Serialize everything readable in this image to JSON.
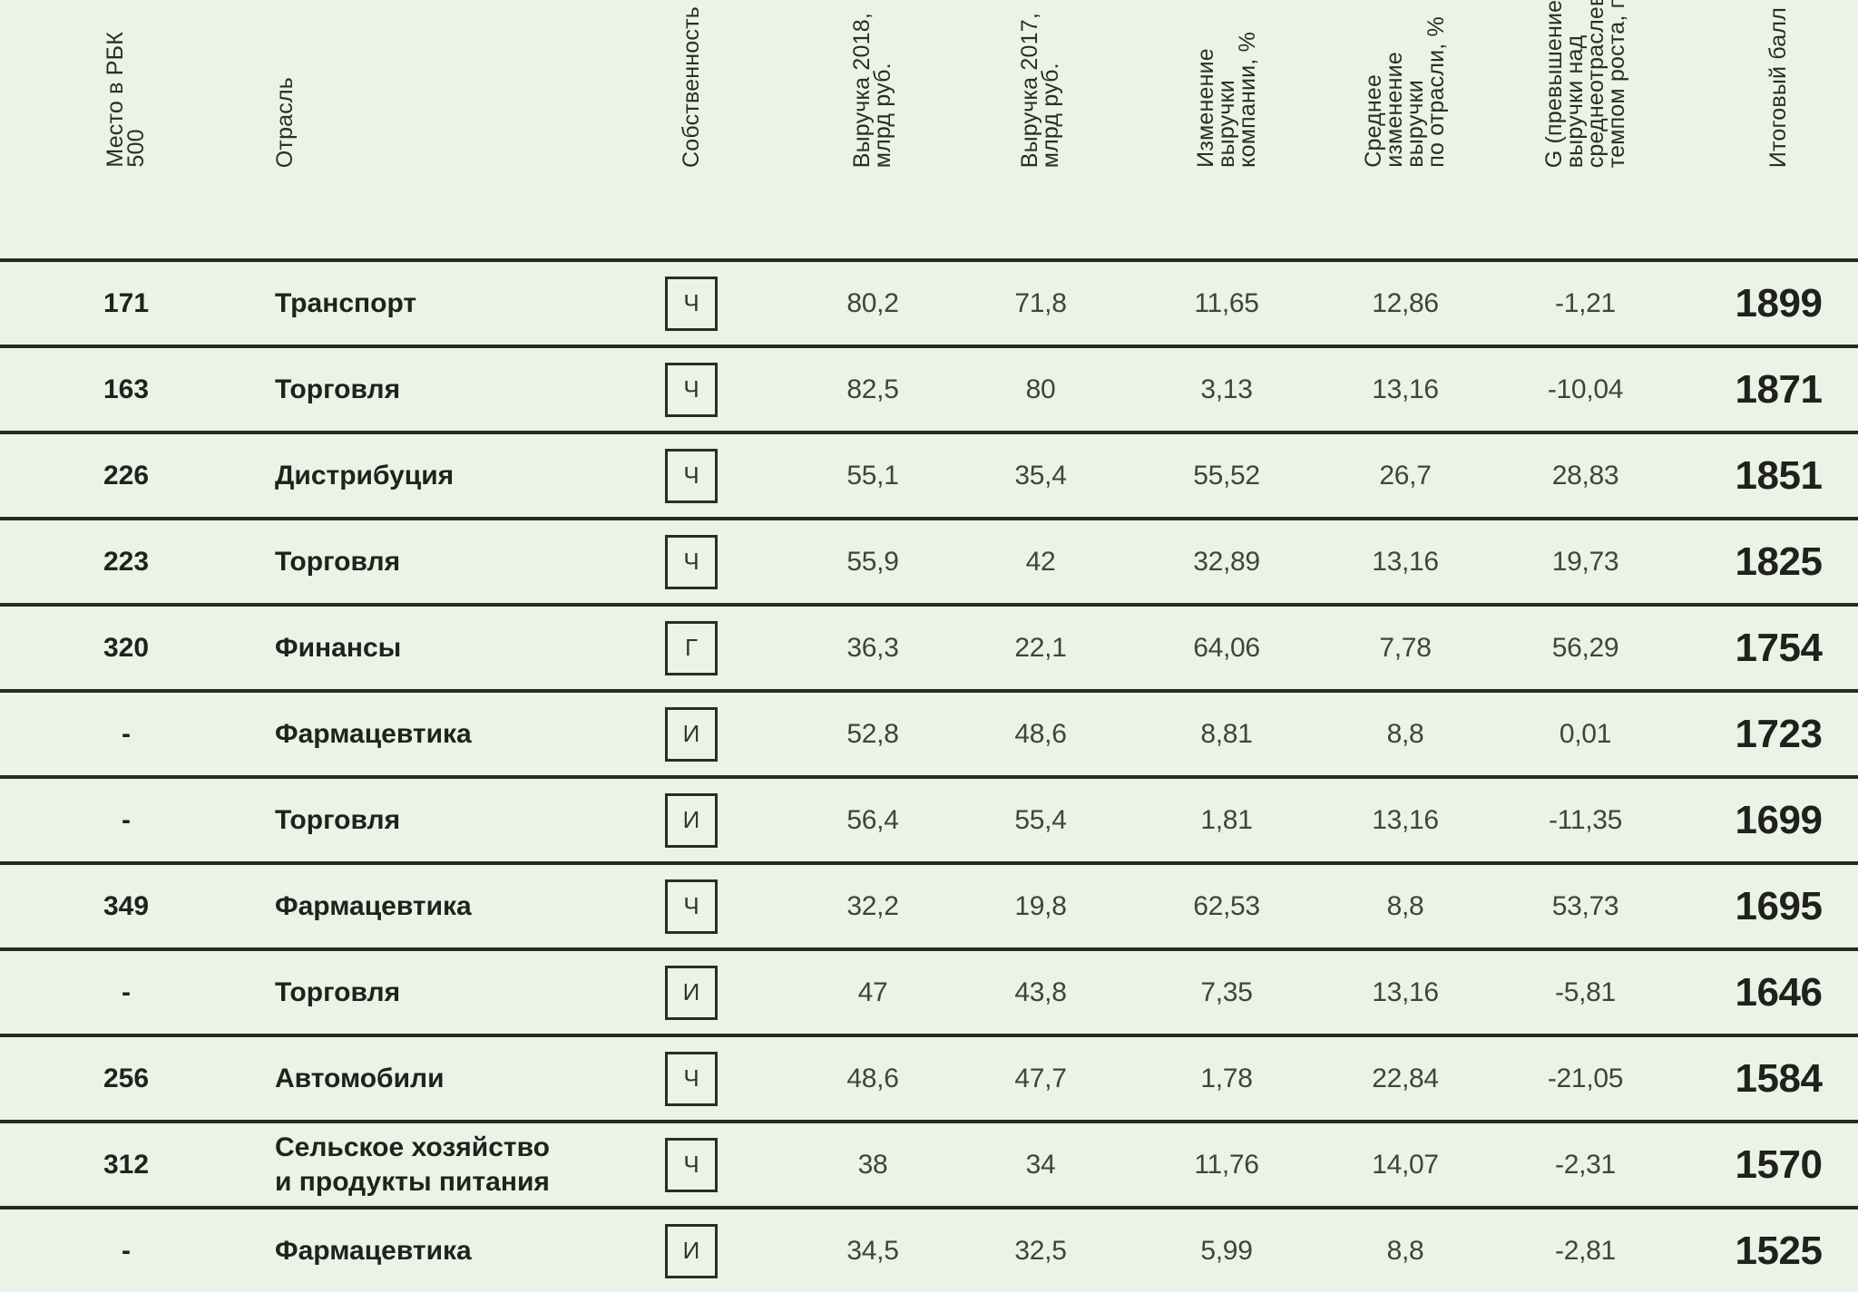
{
  "table": {
    "columns": [
      {
        "id": "rank",
        "label": "Место в РБК\n500"
      },
      {
        "id": "industry",
        "label": "Отрасль"
      },
      {
        "id": "ownership",
        "label": "Собственность"
      },
      {
        "id": "rev2018",
        "label": "Выручка 2018,\nмлрд руб."
      },
      {
        "id": "rev2017",
        "label": "Выручка 2017,\nмлрд руб."
      },
      {
        "id": "change",
        "label": "Изменение\nвыручки\nкомпании, %"
      },
      {
        "id": "avg_change",
        "label": "Среднее\nизменение\nвыручки\nпо отрасли, %"
      },
      {
        "id": "g",
        "label": "G (превышение\nвыручки над\nсреднеотраслевым\nтемпом роста, п.п.)"
      },
      {
        "id": "score",
        "label": "Итоговый балл"
      }
    ],
    "ownership_codes": [
      "Ч",
      "Г",
      "И"
    ],
    "rows": [
      {
        "rank": "171",
        "industry": "Транспорт",
        "ownership": "Ч",
        "rev2018": "80,2",
        "rev2017": "71,8",
        "change": "11,65",
        "avg_change": "12,86",
        "g": "-1,21",
        "score": "1899"
      },
      {
        "rank": "163",
        "industry": "Торговля",
        "ownership": "Ч",
        "rev2018": "82,5",
        "rev2017": "80",
        "change": "3,13",
        "avg_change": "13,16",
        "g": "-10,04",
        "score": "1871"
      },
      {
        "rank": "226",
        "industry": "Дистрибуция",
        "ownership": "Ч",
        "rev2018": "55,1",
        "rev2017": "35,4",
        "change": "55,52",
        "avg_change": "26,7",
        "g": "28,83",
        "score": "1851"
      },
      {
        "rank": "223",
        "industry": "Торговля",
        "ownership": "Ч",
        "rev2018": "55,9",
        "rev2017": "42",
        "change": "32,89",
        "avg_change": "13,16",
        "g": "19,73",
        "score": "1825"
      },
      {
        "rank": "320",
        "industry": "Финансы",
        "ownership": "Г",
        "rev2018": "36,3",
        "rev2017": "22,1",
        "change": "64,06",
        "avg_change": "7,78",
        "g": "56,29",
        "score": "1754"
      },
      {
        "rank": "-",
        "industry": "Фармацевтика",
        "ownership": "И",
        "rev2018": "52,8",
        "rev2017": "48,6",
        "change": "8,81",
        "avg_change": "8,8",
        "g": "0,01",
        "score": "1723"
      },
      {
        "rank": "-",
        "industry": "Торговля",
        "ownership": "И",
        "rev2018": "56,4",
        "rev2017": "55,4",
        "change": "1,81",
        "avg_change": "13,16",
        "g": "-11,35",
        "score": "1699"
      },
      {
        "rank": "349",
        "industry": "Фармацевтика",
        "ownership": "Ч",
        "rev2018": "32,2",
        "rev2017": "19,8",
        "change": "62,53",
        "avg_change": "8,8",
        "g": "53,73",
        "score": "1695"
      },
      {
        "rank": "-",
        "industry": "Торговля",
        "ownership": "И",
        "rev2018": "47",
        "rev2017": "43,8",
        "change": "7,35",
        "avg_change": "13,16",
        "g": "-5,81",
        "score": "1646"
      },
      {
        "rank": "256",
        "industry": "Автомобили",
        "ownership": "Ч",
        "rev2018": "48,6",
        "rev2017": "47,7",
        "change": "1,78",
        "avg_change": "22,84",
        "g": "-21,05",
        "score": "1584"
      },
      {
        "rank": "312",
        "industry": "Сельское хозяйство\nи продукты питания",
        "ownership": "Ч",
        "rev2018": "38",
        "rev2017": "34",
        "change": "11,76",
        "avg_change": "14,07",
        "g": "-2,31",
        "score": "1570"
      },
      {
        "rank": "-",
        "industry": "Фармацевтика",
        "ownership": "И",
        "rev2018": "34,5",
        "rev2017": "32,5",
        "change": "5,99",
        "avg_change": "8,8",
        "g": "-2,81",
        "score": "1525"
      }
    ]
  },
  "colors": {
    "background": "#edf2e7",
    "divider": "#262a21",
    "text_bold": "#20231d",
    "text_value": "#40443c",
    "badge_border": "#2a2d25"
  }
}
